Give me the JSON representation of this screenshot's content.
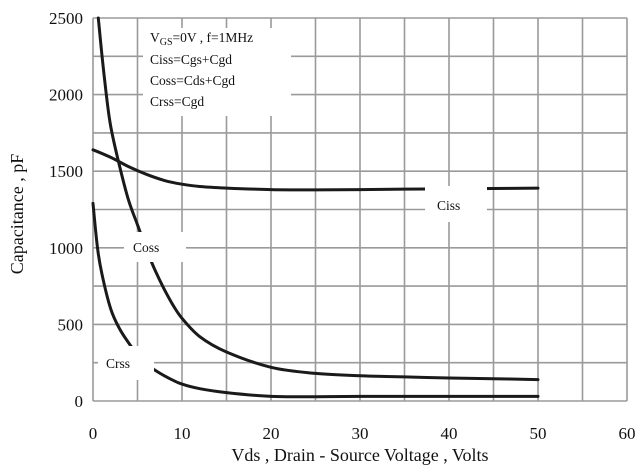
{
  "chart_data": {
    "type": "line",
    "xlabel": "Vds , Drain - Source Voltage , Volts",
    "ylabel": "Capacitance , pF",
    "xlim": [
      0,
      60
    ],
    "ylim": [
      0,
      2500
    ],
    "x_ticks": [
      "0",
      "10",
      "20",
      "30",
      "40",
      "50",
      "60"
    ],
    "y_ticks": [
      "0",
      "500",
      "1000",
      "1500",
      "2000",
      "2500"
    ],
    "grid": true,
    "annotations": {
      "condition_prefix": "V",
      "condition_subscript": "GS",
      "condition_suffix": "=0V , f=1MHz",
      "lines": [
        "Ciss=Cgs+Cgd",
        "Coss=Cds+Cgd",
        "Crss=Cgd"
      ]
    },
    "series": [
      {
        "name": "Ciss",
        "x": [
          0,
          2,
          4,
          6,
          8,
          10,
          12,
          15,
          20,
          25,
          30,
          35,
          40,
          45,
          50
        ],
        "y": [
          1640,
          1590,
          1530,
          1480,
          1440,
          1415,
          1400,
          1390,
          1380,
          1378,
          1380,
          1383,
          1385,
          1387,
          1390
        ]
      },
      {
        "name": "Coss",
        "x": [
          0.6,
          1,
          1.5,
          2,
          3,
          4,
          5,
          6,
          7,
          8,
          9,
          10,
          12,
          15,
          20,
          25,
          30,
          35,
          40,
          45,
          50
        ],
        "y": [
          2500,
          2260,
          2000,
          1790,
          1530,
          1310,
          1150,
          990,
          850,
          730,
          625,
          540,
          420,
          320,
          220,
          180,
          165,
          157,
          150,
          145,
          140
        ]
      },
      {
        "name": "Crss",
        "x": [
          0,
          0.5,
          1,
          2,
          3,
          4,
          5,
          6,
          7,
          8,
          9,
          10,
          12,
          15,
          20,
          25,
          30,
          40,
          50
        ],
        "y": [
          1290,
          1000,
          830,
          600,
          470,
          380,
          300,
          240,
          200,
          165,
          135,
          110,
          80,
          55,
          30,
          28,
          30,
          30,
          30
        ]
      }
    ]
  }
}
